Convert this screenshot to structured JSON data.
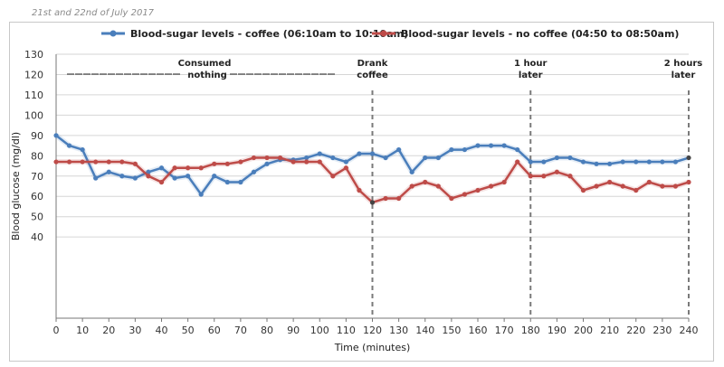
{
  "header": {
    "date_note": "21st and 22nd of July 2017"
  },
  "chart_data": {
    "type": "line",
    "xlabel": "Time (minutes)",
    "ylabel": "Blood glucose (mg/dl)",
    "xlim": [
      0,
      240
    ],
    "ylim": [
      0,
      130
    ],
    "xticks": [
      0,
      10,
      20,
      30,
      40,
      50,
      60,
      70,
      80,
      90,
      100,
      110,
      120,
      130,
      140,
      150,
      160,
      170,
      180,
      190,
      200,
      210,
      220,
      230,
      240
    ],
    "yticks": [
      40,
      50,
      60,
      70,
      80,
      90,
      100,
      110,
      120,
      130
    ],
    "grid": "horizontal",
    "legend_position": "top",
    "series": [
      {
        "name": "Blood-sugar levels - coffee (06:10am to 10:10am)",
        "color": "#4a7ebb",
        "x": [
          0,
          5,
          10,
          15,
          20,
          25,
          30,
          35,
          40,
          45,
          50,
          55,
          60,
          65,
          70,
          75,
          80,
          85,
          90,
          95,
          100,
          105,
          110,
          115,
          120,
          125,
          130,
          135,
          140,
          145,
          150,
          155,
          160,
          165,
          170,
          175,
          180,
          185,
          190,
          195,
          200,
          205,
          210,
          215,
          220,
          225,
          230,
          235,
          240
        ],
        "y": [
          90,
          85,
          83,
          69,
          72,
          70,
          69,
          72,
          74,
          69,
          70,
          61,
          70,
          67,
          67,
          72,
          76,
          78,
          78,
          79,
          81,
          79,
          77,
          81,
          81,
          79,
          83,
          72,
          79,
          79,
          83,
          83,
          85,
          85,
          85,
          83,
          77,
          77,
          79,
          79,
          77,
          76,
          76,
          77,
          77,
          77,
          77,
          77,
          79
        ]
      },
      {
        "name": "Blood-sugar levels - no coffee (04:50 to 08:50am)",
        "color": "#be4b48",
        "x": [
          0,
          5,
          10,
          15,
          20,
          25,
          30,
          35,
          40,
          45,
          50,
          55,
          60,
          65,
          70,
          75,
          80,
          85,
          90,
          95,
          100,
          105,
          110,
          115,
          120,
          125,
          130,
          135,
          140,
          145,
          150,
          155,
          160,
          165,
          170,
          175,
          180,
          185,
          190,
          195,
          200,
          205,
          210,
          215,
          220,
          225,
          230,
          235,
          240
        ],
        "y": [
          77,
          77,
          77,
          77,
          77,
          77,
          76,
          70,
          67,
          74,
          74,
          74,
          76,
          76,
          77,
          79,
          79,
          79,
          77,
          77,
          77,
          70,
          74,
          63,
          57,
          59,
          59,
          65,
          67,
          65,
          59,
          61,
          63,
          65,
          67,
          77,
          70,
          70,
          72,
          70,
          63,
          65,
          67,
          65,
          63,
          67,
          65,
          65,
          67
        ]
      }
    ],
    "annotations": [
      {
        "lines": [
          "Consumed",
          "nothing"
        ]
      },
      {
        "x": 120,
        "lines": [
          "Drank",
          "coffee"
        ]
      },
      {
        "x": 180,
        "lines": [
          "1 hour",
          "later"
        ]
      },
      {
        "x": 240,
        "lines": [
          "2 hours",
          "later"
        ]
      }
    ]
  }
}
